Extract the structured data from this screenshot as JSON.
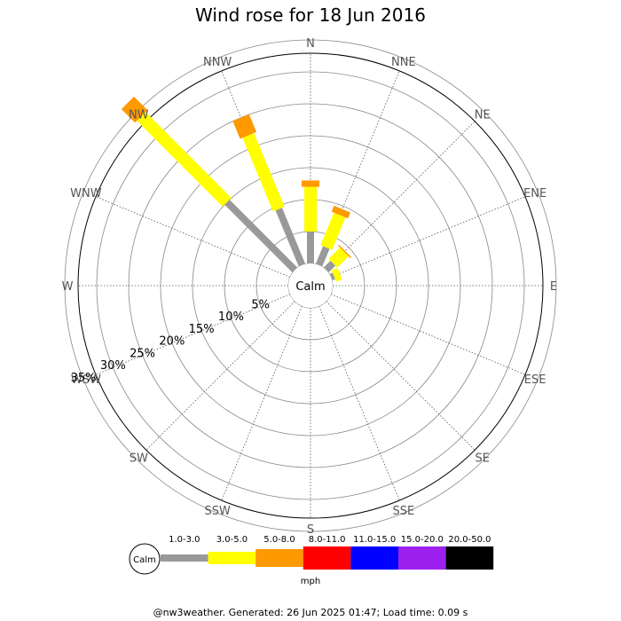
{
  "chart_data": {
    "type": "wind_rose",
    "title": "Wind rose for 18 Jun 2016",
    "calm_label": "Calm",
    "directions": [
      "N",
      "NNE",
      "NE",
      "ENE",
      "E",
      "ESE",
      "SE",
      "SSE",
      "S",
      "SSW",
      "SW",
      "WSW",
      "W",
      "WNW",
      "NW",
      "NNW"
    ],
    "rings_percent": [
      5,
      10,
      15,
      20,
      25,
      30,
      35
    ],
    "ring_labels": [
      "5%",
      "10%",
      "15%",
      "20%",
      "25%",
      "30%",
      "35%"
    ],
    "unit_label": "mph",
    "speed_bins": [
      {
        "label": "1.0-3.0",
        "color": "#999999"
      },
      {
        "label": "3.0-5.0",
        "color": "#ffff00"
      },
      {
        "label": "5.0-8.0",
        "color": "#ff9900"
      },
      {
        "label": "8.0-11.0",
        "color": "#ff0000"
      },
      {
        "label": "11.0-15.0",
        "color": "#0000ff"
      },
      {
        "label": "15.0-20.0",
        "color": "#9e20ee"
      },
      {
        "label": "20.0-50.0",
        "color": "#000000"
      }
    ],
    "series": [
      {
        "direction": "N",
        "cumulative_percent": [
          5.0,
          12.0,
          13.0
        ]
      },
      {
        "direction": "NNE",
        "cumulative_percent": [
          3.0,
          8.5,
          9.5
        ]
      },
      {
        "direction": "NE",
        "cumulative_percent": [
          1.5,
          4.0,
          4.2
        ]
      },
      {
        "direction": "ENE",
        "cumulative_percent": [
          0.5,
          1.5
        ]
      },
      {
        "direction": "NNW",
        "cumulative_percent": [
          9.5,
          22.0,
          25.0
        ]
      },
      {
        "direction": "NW",
        "cumulative_percent": [
          15.0,
          34.0,
          37.0
        ]
      }
    ]
  },
  "footer": "@nw3weather. Generated: 26 Jun 2025 01:47; Load time: 0.09 s"
}
